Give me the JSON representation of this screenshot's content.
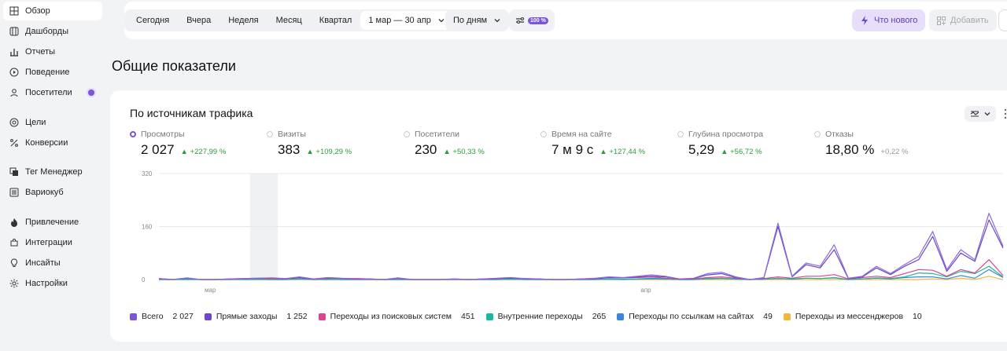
{
  "sidebar": {
    "items": [
      {
        "label": "Обзор",
        "icon": "grid-icon",
        "active": true
      },
      {
        "label": "Дашборды",
        "icon": "dashboard-icon"
      },
      {
        "label": "Отчеты",
        "icon": "bar-chart-icon"
      },
      {
        "label": "Поведение",
        "icon": "play-icon"
      },
      {
        "label": "Посетители",
        "icon": "person-icon",
        "dot": true
      },
      {
        "label": "Цели",
        "icon": "target-icon"
      },
      {
        "label": "Конверсии",
        "icon": "percent-icon"
      },
      {
        "label": "Тег Менеджер",
        "icon": "tag-icon"
      },
      {
        "label": "Вариокуб",
        "icon": "list-icon"
      },
      {
        "label": "Привлечение",
        "icon": "flame-icon"
      },
      {
        "label": "Интеграции",
        "icon": "puzzle-icon"
      },
      {
        "label": "Инсайты",
        "icon": "bulb-icon"
      },
      {
        "label": "Настройки",
        "icon": "gear-icon"
      }
    ]
  },
  "toolbar": {
    "periods": [
      "Сегодня",
      "Вчера",
      "Неделя",
      "Месяц",
      "Квартал"
    ],
    "range": "1 мар — 30 апр",
    "grouping": "По дням",
    "sampling_badge": "100 %",
    "whats_new": "Что нового",
    "add": "Добавить"
  },
  "page_title": "Общие показатели",
  "card": {
    "title": "По источникам трафика",
    "metrics": [
      {
        "label": "Просмотры",
        "value": "2 027",
        "delta": "▲ +227,99 %",
        "selected": true
      },
      {
        "label": "Визиты",
        "value": "383",
        "delta": "▲ +109,29 %"
      },
      {
        "label": "Посетители",
        "value": "230",
        "delta": "▲ +50,33 %"
      },
      {
        "label": "Время на сайте",
        "value": "7 м 9 с",
        "delta": "▲ +127,44 %"
      },
      {
        "label": "Глубина просмотра",
        "value": "5,29",
        "delta": "▲ +56,72 %"
      },
      {
        "label": "Отказы",
        "value": "18,80 %",
        "delta": "+0,22 %",
        "neutral": true
      }
    ],
    "legend": [
      {
        "label": "Всего",
        "value": "2 027",
        "color": "#7a55d8"
      },
      {
        "label": "Прямые заходы",
        "value": "1 252",
        "color": "#6e46c8"
      },
      {
        "label": "Переходы из поисковых систем",
        "value": "451",
        "color": "#e0428f"
      },
      {
        "label": "Внутренние переходы",
        "value": "265",
        "color": "#19b8a0"
      },
      {
        "label": "Переходы по ссылкам на сайтах",
        "value": "49",
        "color": "#3b86d9"
      },
      {
        "label": "Переходы из мессенджеров",
        "value": "10",
        "color": "#f0b840"
      }
    ]
  },
  "chart_data": {
    "type": "line",
    "ylim": [
      0,
      320
    ],
    "y_ticks": [
      "320",
      "160",
      "0"
    ],
    "x_tick_labels": [
      "мар",
      "апр"
    ],
    "x_tick_days": [
      0,
      31
    ],
    "days": 61,
    "series": [
      {
        "name": "Всего",
        "color": "#8a6ad8",
        "values": [
          3,
          0,
          5,
          0,
          0,
          2,
          3,
          4,
          5,
          3,
          8,
          2,
          6,
          4,
          3,
          2,
          0,
          5,
          0,
          0,
          0,
          2,
          0,
          2,
          4,
          6,
          3,
          2,
          0,
          0,
          2,
          4,
          8,
          6,
          10,
          14,
          10,
          2,
          4,
          18,
          22,
          8,
          0,
          6,
          170,
          10,
          50,
          40,
          105,
          4,
          10,
          40,
          18,
          45,
          70,
          145,
          30,
          90,
          60,
          200,
          100
        ]
      },
      {
        "name": "Прямые заходы",
        "color": "#6e46c8",
        "values": [
          3,
          0,
          4,
          0,
          0,
          2,
          3,
          4,
          4,
          3,
          6,
          2,
          5,
          3,
          3,
          2,
          0,
          4,
          0,
          0,
          0,
          2,
          0,
          2,
          3,
          4,
          3,
          2,
          0,
          0,
          2,
          3,
          6,
          5,
          8,
          10,
          8,
          2,
          3,
          14,
          18,
          6,
          0,
          5,
          160,
          8,
          45,
          35,
          90,
          3,
          8,
          35,
          15,
          40,
          60,
          130,
          25,
          80,
          55,
          180,
          95
        ]
      },
      {
        "name": "Переходы из поисковых систем",
        "color": "#e0428f",
        "values": [
          2,
          0,
          4,
          0,
          0,
          1,
          2,
          3,
          2,
          2,
          5,
          1,
          3,
          3,
          1,
          1,
          0,
          3,
          0,
          0,
          0,
          1,
          0,
          1,
          2,
          4,
          2,
          1,
          0,
          0,
          1,
          2,
          6,
          5,
          6,
          8,
          4,
          1,
          2,
          6,
          8,
          4,
          0,
          3,
          8,
          4,
          10,
          10,
          15,
          2,
          6,
          10,
          6,
          18,
          30,
          28,
          10,
          30,
          20,
          60,
          12
        ]
      },
      {
        "name": "Внутренние переходы",
        "color": "#19b8a0",
        "values": [
          0,
          0,
          0,
          0,
          0,
          0,
          0,
          0,
          0,
          0,
          1,
          0,
          0,
          0,
          0,
          0,
          0,
          0,
          0,
          0,
          0,
          0,
          0,
          0,
          0,
          1,
          0,
          0,
          0,
          0,
          0,
          0,
          1,
          0,
          1,
          2,
          1,
          0,
          0,
          2,
          3,
          1,
          0,
          1,
          4,
          1,
          4,
          3,
          6,
          0,
          2,
          5,
          3,
          8,
          20,
          18,
          8,
          25,
          18,
          40,
          8
        ]
      },
      {
        "name": "Переходы по ссылкам на сайтах",
        "color": "#3b86d9",
        "values": [
          0,
          0,
          1,
          0,
          0,
          0,
          1,
          1,
          0,
          0,
          2,
          0,
          1,
          0,
          0,
          0,
          0,
          0,
          0,
          0,
          0,
          0,
          0,
          0,
          0,
          1,
          0,
          0,
          0,
          0,
          0,
          0,
          2,
          1,
          2,
          4,
          2,
          0,
          0,
          3,
          4,
          2,
          0,
          1,
          3,
          2,
          4,
          3,
          5,
          0,
          2,
          4,
          2,
          6,
          8,
          8,
          2,
          12,
          4,
          30,
          6
        ]
      },
      {
        "name": "Переходы из мессенджеров",
        "color": "#f0b840",
        "values": [
          0,
          0,
          0,
          0,
          0,
          0,
          0,
          0,
          0,
          0,
          0,
          0,
          0,
          0,
          0,
          0,
          0,
          0,
          0,
          0,
          0,
          0,
          0,
          0,
          0,
          0,
          0,
          0,
          0,
          0,
          0,
          0,
          0,
          0,
          0,
          0,
          0,
          0,
          0,
          0,
          0,
          0,
          0,
          0,
          0,
          0,
          0,
          0,
          0,
          0,
          0,
          0,
          0,
          0,
          0,
          2,
          0,
          4,
          0,
          10,
          0
        ]
      }
    ]
  }
}
